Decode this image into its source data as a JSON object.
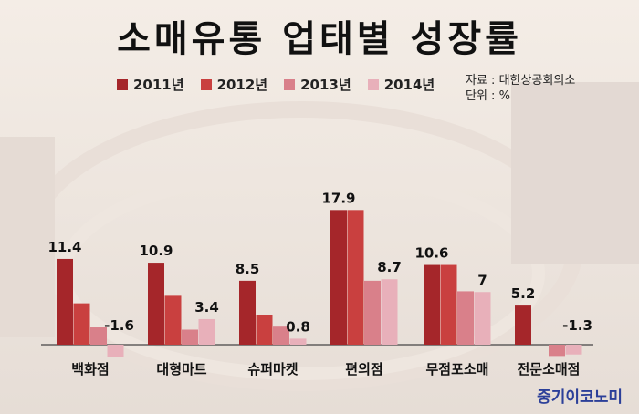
{
  "title": "소매유통 업태별 성장률",
  "source_line": "자료 : 대한상공회의소",
  "unit_line": "단위 : %",
  "logo_text": "중기이코노미",
  "colors": {
    "s2011": "#a5262a",
    "s2012": "#c9403f",
    "s2013": "#d9808a",
    "s2014": "#e8b0ba"
  },
  "chart_data": {
    "type": "bar",
    "title": "소매유통 업태별 성장률",
    "categories": [
      "백화점",
      "대형마트",
      "슈퍼마켓",
      "편의점",
      "무점포소매",
      "전문소매점"
    ],
    "series": [
      {
        "name": "2011년",
        "values": [
          11.4,
          10.9,
          8.5,
          17.9,
          10.6,
          5.2
        ]
      },
      {
        "name": "2012년",
        "values": [
          5.5,
          6.5,
          4.0,
          17.9,
          10.6,
          0
        ]
      },
      {
        "name": "2013년",
        "values": [
          2.3,
          2.0,
          2.4,
          8.5,
          7.1,
          -1.5
        ]
      },
      {
        "name": "2014년",
        "values": [
          -1.6,
          3.4,
          0.8,
          8.7,
          7.0,
          -1.3
        ]
      }
    ],
    "data_labels": [
      {
        "category": "백화점",
        "series": "2011년",
        "text": "11.4"
      },
      {
        "category": "백화점",
        "series": "2014년",
        "text": "-1.6"
      },
      {
        "category": "대형마트",
        "series": "2011년",
        "text": "10.9"
      },
      {
        "category": "대형마트",
        "series": "2014년",
        "text": "3.4"
      },
      {
        "category": "슈퍼마켓",
        "series": "2011년",
        "text": "8.5"
      },
      {
        "category": "슈퍼마켓",
        "series": "2014년",
        "text": "0.8"
      },
      {
        "category": "편의점",
        "series": "2011년",
        "text": "17.9"
      },
      {
        "category": "편의점",
        "series": "2014년",
        "text": "8.7"
      },
      {
        "category": "무점포소매",
        "series": "2011년",
        "text": "10.6"
      },
      {
        "category": "무점포소매",
        "series": "2014년",
        "text": "7"
      },
      {
        "category": "전문소매점",
        "series": "2011년",
        "text": "5.2"
      },
      {
        "category": "전문소매점",
        "series": "2014년",
        "text": "-1.3"
      }
    ],
    "ylim": [
      -2,
      20
    ],
    "legend_position": "top"
  }
}
